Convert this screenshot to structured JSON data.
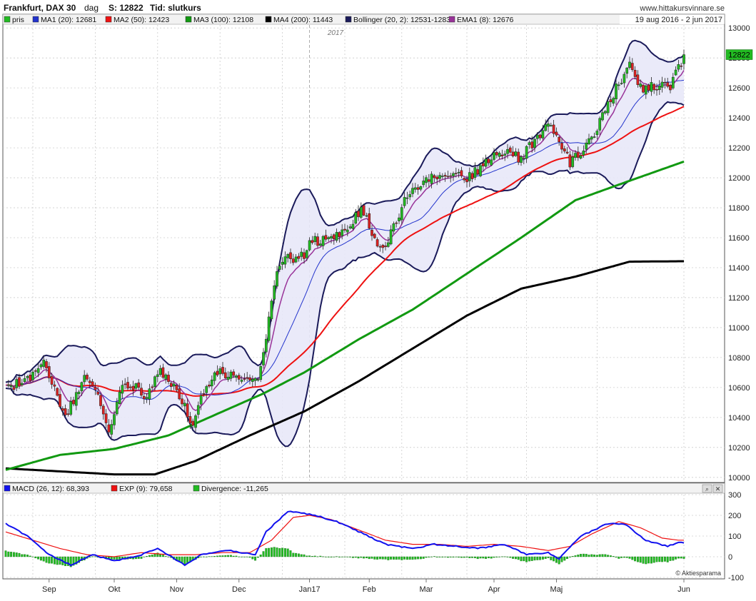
{
  "header": {
    "instrument": "Frankfurt, DAX 30",
    "interval": "dag",
    "last_label": "S: 12822",
    "time_label": "Tid: slutkurs",
    "source": "www.hittakursvinnare.se",
    "date_range": "19 aug 2016 - 2 jun 2017"
  },
  "colors": {
    "up": "#22bb22",
    "down": "#dd2222",
    "ma1": "#2233cc",
    "ma2": "#ee1111",
    "ma3": "#119911",
    "ma4": "#000000",
    "bollinger": "#1a1a5a",
    "ema1": "#993399",
    "macd": "#1111ee",
    "exp": "#ee1111",
    "divergence": "#22bb22",
    "band_fill": "#e8e8f8"
  },
  "chart_data": [
    {
      "type": "candlestick",
      "title": "Frankfurt, DAX 30",
      "year_marker": "2017",
      "price_tag": "12822",
      "legend": [
        {
          "key": "pris",
          "label": "pris",
          "color": "#22bb22"
        },
        {
          "key": "ma1",
          "label": "MA1 (20): 12681",
          "color": "#2233cc"
        },
        {
          "key": "ma2",
          "label": "MA2 (50): 12423",
          "color": "#ee1111"
        },
        {
          "key": "ma3",
          "label": "MA3 (100): 12108",
          "color": "#119911"
        },
        {
          "key": "ma4",
          "label": "MA4 (200): 11443",
          "color": "#000000"
        },
        {
          "key": "boll",
          "label": "Bollinger (20, 2): 12531-12831",
          "color": "#1a1a5a"
        },
        {
          "key": "ema1",
          "label": "EMA1 (8): 12676",
          "color": "#993399"
        }
      ],
      "y_ticks": [
        10000,
        10200,
        10400,
        10600,
        10800,
        11000,
        11200,
        11400,
        11600,
        11800,
        12000,
        12200,
        12400,
        12600,
        12800,
        13000
      ],
      "ylim": [
        9980,
        13020
      ],
      "x_months": [
        "Sep",
        "Okt",
        "Nov",
        "Dec",
        "Jan17",
        "Feb",
        "Mar",
        "Apr",
        "Maj",
        "Jun"
      ],
      "n_days": 200,
      "close_anchors": [
        [
          0,
          10600
        ],
        [
          8,
          10640
        ],
        [
          14,
          10750
        ],
        [
          18,
          10600
        ],
        [
          22,
          10400
        ],
        [
          26,
          10550
        ],
        [
          30,
          10680
        ],
        [
          35,
          10500
        ],
        [
          38,
          10300
        ],
        [
          43,
          10640
        ],
        [
          48,
          10600
        ],
        [
          51,
          10500
        ],
        [
          56,
          10710
        ],
        [
          62,
          10620
        ],
        [
          66,
          10480
        ],
        [
          69,
          10350
        ],
        [
          72,
          10550
        ],
        [
          78,
          10700
        ],
        [
          82,
          10690
        ],
        [
          88,
          10640
        ],
        [
          93,
          10640
        ],
        [
          95,
          10800
        ],
        [
          98,
          11200
        ],
        [
          100,
          11400
        ],
        [
          104,
          11460
        ],
        [
          110,
          11480
        ],
        [
          113,
          11580
        ],
        [
          119,
          11580
        ],
        [
          123,
          11640
        ],
        [
          128,
          11700
        ],
        [
          131,
          11800
        ],
        [
          137,
          11560
        ],
        [
          140,
          11560
        ],
        [
          148,
          11880
        ],
        [
          156,
          12000
        ],
        [
          163,
          12020
        ],
        [
          170,
          12000
        ],
        [
          176,
          12080
        ],
        [
          181,
          12150
        ],
        [
          186,
          12180
        ],
        [
          190,
          12120
        ],
        [
          195,
          12260
        ],
        [
          200,
          12340
        ],
        [
          203,
          12300
        ],
        [
          208,
          12100
        ],
        [
          212,
          12160
        ],
        [
          217,
          12300
        ],
        [
          221,
          12450
        ],
        [
          225,
          12600
        ],
        [
          230,
          12740
        ],
        [
          235,
          12580
        ],
        [
          240,
          12620
        ],
        [
          245,
          12620
        ],
        [
          250,
          12822
        ]
      ],
      "ma_anchors": {
        "ma4": [
          [
            0,
            10060
          ],
          [
            40,
            10020
          ],
          [
            55,
            10020
          ],
          [
            70,
            10110
          ],
          [
            90,
            10280
          ],
          [
            110,
            10440
          ],
          [
            130,
            10640
          ],
          [
            150,
            10860
          ],
          [
            170,
            11080
          ],
          [
            190,
            11260
          ],
          [
            210,
            11340
          ],
          [
            230,
            11440
          ],
          [
            250,
            11443
          ]
        ],
        "ma3": [
          [
            0,
            10050
          ],
          [
            20,
            10150
          ],
          [
            40,
            10190
          ],
          [
            60,
            10280
          ],
          [
            80,
            10440
          ],
          [
            95,
            10560
          ],
          [
            110,
            10700
          ],
          [
            130,
            10920
          ],
          [
            150,
            11120
          ],
          [
            170,
            11360
          ],
          [
            190,
            11600
          ],
          [
            210,
            11850
          ],
          [
            230,
            11980
          ],
          [
            250,
            12108
          ]
        ]
      }
    },
    {
      "type": "line",
      "title": "MACD",
      "legend": [
        {
          "key": "macd",
          "label": "MACD (26, 12): 68,393",
          "color": "#1111ee"
        },
        {
          "key": "exp",
          "label": "EXP (9): 79,658",
          "color": "#ee1111"
        },
        {
          "key": "div",
          "label": "Divergence: -11,265",
          "color": "#22bb22"
        }
      ],
      "y_ticks": [
        -100,
        0,
        100,
        200,
        300
      ],
      "ylim": [
        -100,
        300
      ],
      "macd_anchors": [
        [
          0,
          160
        ],
        [
          8,
          100
        ],
        [
          16,
          10
        ],
        [
          24,
          -40
        ],
        [
          32,
          10
        ],
        [
          40,
          -20
        ],
        [
          48,
          0
        ],
        [
          56,
          40
        ],
        [
          66,
          -40
        ],
        [
          72,
          10
        ],
        [
          82,
          30
        ],
        [
          92,
          10
        ],
        [
          96,
          120
        ],
        [
          104,
          220
        ],
        [
          110,
          210
        ],
        [
          114,
          200
        ],
        [
          122,
          170
        ],
        [
          132,
          110
        ],
        [
          140,
          60
        ],
        [
          150,
          40
        ],
        [
          158,
          60
        ],
        [
          166,
          50
        ],
        [
          174,
          40
        ],
        [
          184,
          60
        ],
        [
          192,
          10
        ],
        [
          200,
          20
        ],
        [
          204,
          -10
        ],
        [
          212,
          100
        ],
        [
          222,
          160
        ],
        [
          228,
          160
        ],
        [
          236,
          80
        ],
        [
          244,
          50
        ],
        [
          248,
          68
        ]
      ],
      "exp_anchors": [
        [
          0,
          120
        ],
        [
          10,
          80
        ],
        [
          20,
          40
        ],
        [
          30,
          10
        ],
        [
          40,
          0
        ],
        [
          50,
          20
        ],
        [
          60,
          10
        ],
        [
          70,
          10
        ],
        [
          80,
          20
        ],
        [
          90,
          20
        ],
        [
          98,
          80
        ],
        [
          106,
          190
        ],
        [
          112,
          200
        ],
        [
          120,
          180
        ],
        [
          130,
          130
        ],
        [
          140,
          80
        ],
        [
          150,
          60
        ],
        [
          160,
          60
        ],
        [
          170,
          50
        ],
        [
          180,
          60
        ],
        [
          190,
          50
        ],
        [
          200,
          30
        ],
        [
          208,
          50
        ],
        [
          216,
          110
        ],
        [
          226,
          170
        ],
        [
          234,
          140
        ],
        [
          242,
          90
        ],
        [
          248,
          80
        ]
      ],
      "footer": "© Aktiesparama"
    }
  ]
}
